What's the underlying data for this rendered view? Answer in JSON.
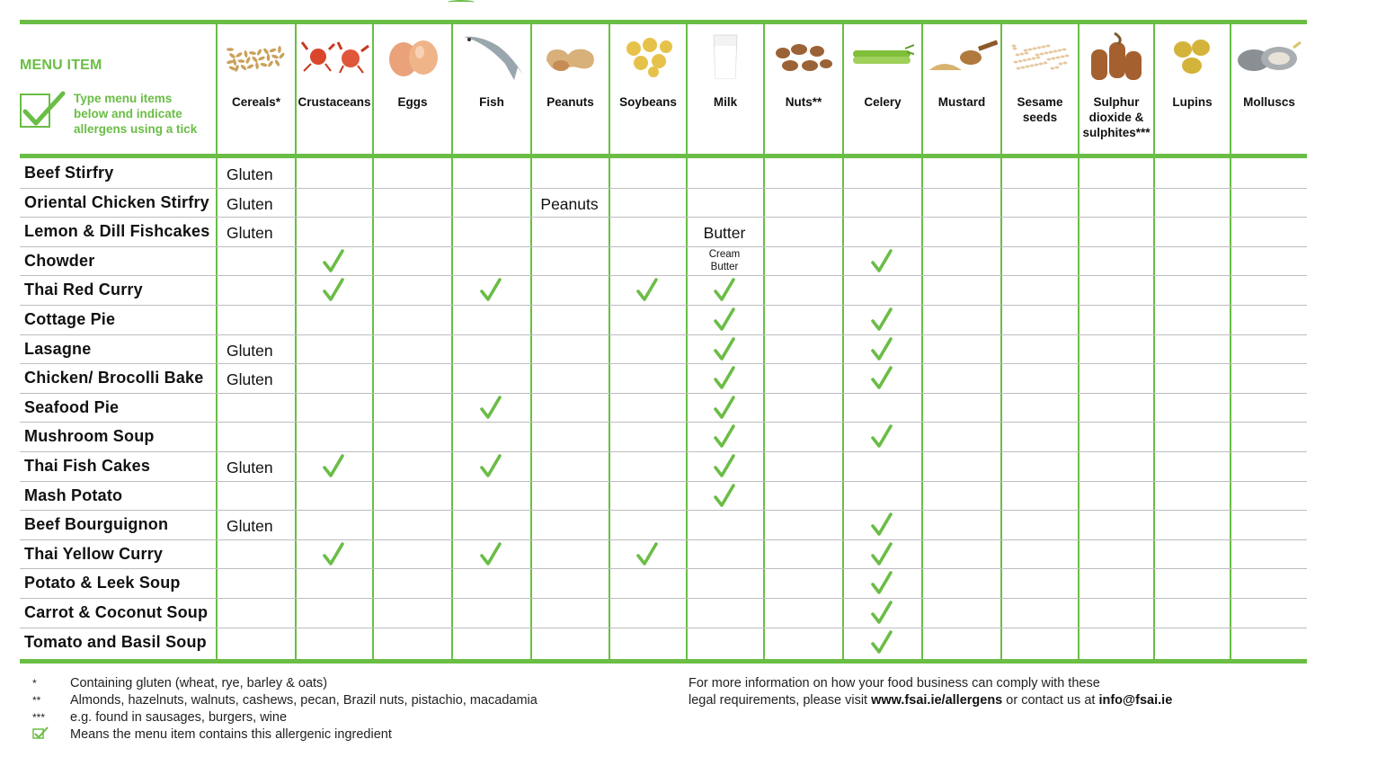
{
  "header": {
    "menu_item_label": "MENU ITEM",
    "instructions_line1": "Type menu items",
    "instructions_line2": "below and indicate",
    "instructions_line3": "allergens using a tick"
  },
  "allergens": [
    {
      "key": "cereals",
      "lines": [
        "Cereals*"
      ],
      "icon": "cereals-icon"
    },
    {
      "key": "crustaceans",
      "lines": [
        "Crustaceans"
      ],
      "icon": "crab-icon"
    },
    {
      "key": "eggs",
      "lines": [
        "Eggs"
      ],
      "icon": "eggs-icon"
    },
    {
      "key": "fish",
      "lines": [
        "Fish"
      ],
      "icon": "fish-icon"
    },
    {
      "key": "peanuts",
      "lines": [
        "Peanuts"
      ],
      "icon": "peanuts-icon"
    },
    {
      "key": "soybeans",
      "lines": [
        "Soybeans"
      ],
      "icon": "soybeans-icon"
    },
    {
      "key": "milk",
      "lines": [
        "Milk"
      ],
      "icon": "milk-glass-icon"
    },
    {
      "key": "nuts",
      "lines": [
        "Nuts**"
      ],
      "icon": "nuts-icon"
    },
    {
      "key": "celery",
      "lines": [
        "Celery"
      ],
      "icon": "celery-icon"
    },
    {
      "key": "mustard",
      "lines": [
        "Mustard"
      ],
      "icon": "mustard-icon"
    },
    {
      "key": "sesame",
      "lines": [
        "Sesame",
        "seeds"
      ],
      "icon": "sesame-icon"
    },
    {
      "key": "sulphur",
      "lines": [
        "Sulphur",
        "dioxide &",
        "sulphites***"
      ],
      "icon": "sausages-icon"
    },
    {
      "key": "lupins",
      "lines": [
        "Lupins"
      ],
      "icon": "lupins-icon"
    },
    {
      "key": "molluscs",
      "lines": [
        "Molluscs"
      ],
      "icon": "oysters-icon"
    }
  ],
  "rows": [
    {
      "name": "Beef Stirfry",
      "cells": {
        "0": "Gluten"
      }
    },
    {
      "name": "Oriental Chicken Stirfry",
      "cells": {
        "0": "Gluten",
        "4": "Peanuts"
      }
    },
    {
      "name": "Lemon & Dill Fishcakes",
      "cells": {
        "0": "Gluten",
        "6": "Butter"
      }
    },
    {
      "name": "Chowder",
      "cells": {
        "1": "tick",
        "6": "Cream\nButter",
        "8": "tick"
      }
    },
    {
      "name": "Thai Red Curry",
      "cells": {
        "1": "tick",
        "3": "tick",
        "5": "tick",
        "6": "tick"
      }
    },
    {
      "name": "Cottage Pie",
      "cells": {
        "6": "tick",
        "8": "tick"
      }
    },
    {
      "name": "Lasagne",
      "cells": {
        "0": " Gluten",
        "6": "tick",
        "8": "tick"
      }
    },
    {
      "name": "Chicken/ Brocolli Bake",
      "cells": {
        "0": "Gluten",
        "6": "tick",
        "8": "tick"
      }
    },
    {
      "name": "Seafood Pie",
      "cells": {
        "3": "tick",
        "6": "tick"
      }
    },
    {
      "name": "Mushroom Soup",
      "cells": {
        "6": "tick",
        "8": "tick"
      }
    },
    {
      "name": "Thai Fish Cakes",
      "cells": {
        "0": "Gluten",
        "1": "tick",
        "3": "tick",
        "6": "tick"
      }
    },
    {
      "name": "Mash Potato",
      "cells": {
        "6": "tick"
      }
    },
    {
      "name": "Beef Bourguignon",
      "cells": {
        "0": "Gluten",
        "8": "tick"
      }
    },
    {
      "name": "Thai Yellow Curry",
      "cells": {
        "1": "tick",
        "3": "tick",
        "5": "tick",
        "8": "tick"
      }
    },
    {
      "name": "Potato & Leek Soup",
      "cells": {
        "8": "tick"
      }
    },
    {
      "name": "Carrot & Coconut Soup",
      "cells": {
        "8": "tick"
      }
    },
    {
      "name": "Tomato and Basil Soup",
      "cells": {
        "8": "tick"
      }
    }
  ],
  "footnotes": [
    {
      "marker": "*",
      "text": "Containing gluten (wheat, rye, barley & oats)"
    },
    {
      "marker": "**",
      "text": "Almonds, hazelnuts, walnuts, cashews, pecan, Brazil nuts, pistachio, macadamia"
    },
    {
      "marker": "***",
      "text": "e.g. found in sausages, burgers, wine"
    },
    {
      "marker": "tick",
      "text": "Means the menu item contains this allergenic ingredient"
    }
  ],
  "info": {
    "line1": "For more information on how your food business can comply with these",
    "line2_prefix": "legal requirements, please visit ",
    "url": "www.fsai.ie/allergens",
    "line2_mid": " or contact us at ",
    "email": "info@fsai.ie"
  },
  "colors": {
    "accent": "#6abd45",
    "rule_grey": "#bdbdbd"
  }
}
